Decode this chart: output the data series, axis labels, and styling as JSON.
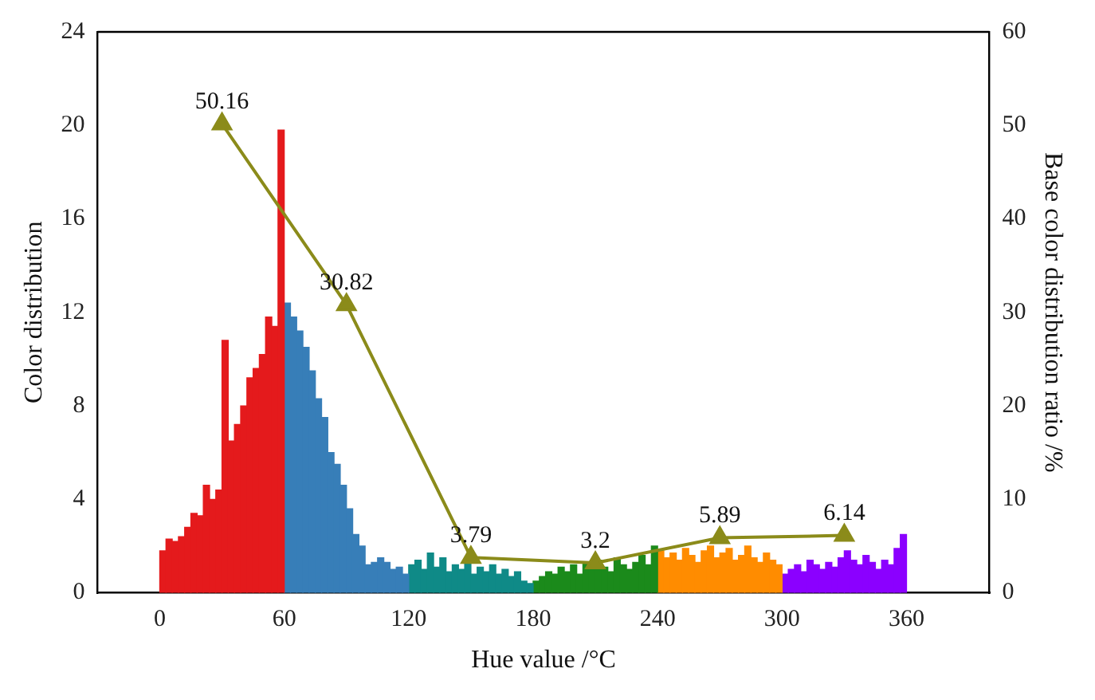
{
  "chart_data": {
    "type": "histogram",
    "xlabel": "Hue value /°C",
    "ylabel": "Color distribution",
    "y2label": "Base color distribution ratio /%",
    "xlim": [
      -30,
      400
    ],
    "xticks": [
      0,
      60,
      120,
      180,
      240,
      300,
      360
    ],
    "ylim": [
      0,
      24
    ],
    "yticks": [
      0,
      4,
      8,
      12,
      16,
      20,
      24
    ],
    "y2lim": [
      0,
      60
    ],
    "y2ticks": [
      0,
      10,
      20,
      30,
      40,
      50,
      60
    ],
    "grid": false,
    "legend": false,
    "series": [
      {
        "color": "#e41a1c",
        "bins": [
          0,
          3,
          6,
          9,
          12,
          15,
          18,
          21,
          24,
          27,
          30,
          33,
          36,
          39,
          42,
          45,
          48,
          51,
          54,
          57,
          60
        ],
        "values": [
          1.8,
          2.3,
          2.2,
          2.4,
          2.8,
          3.4,
          3.3,
          4.6,
          4.0,
          4.4,
          10.8,
          6.5,
          7.2,
          8.0,
          9.2,
          9.6,
          10.2,
          11.8,
          11.4,
          19.8
        ]
      },
      {
        "color": "#377eb8",
        "bins": [
          60,
          63,
          66,
          69,
          72,
          75,
          78,
          81,
          84,
          87,
          90,
          93,
          96,
          99,
          102,
          105,
          108,
          111,
          114,
          117,
          120
        ],
        "values": [
          12.4,
          11.8,
          11.2,
          10.5,
          9.5,
          8.3,
          7.5,
          6.0,
          5.5,
          4.6,
          3.6,
          2.5,
          2.0,
          1.2,
          1.3,
          1.5,
          1.3,
          1.0,
          1.1,
          0.8
        ]
      },
      {
        "color": "#0f8a87",
        "bins": [
          120,
          123,
          126,
          129,
          132,
          135,
          138,
          141,
          144,
          147,
          150,
          153,
          156,
          159,
          162,
          165,
          168,
          171,
          174,
          177,
          180
        ],
        "values": [
          1.2,
          1.4,
          1.0,
          1.7,
          1.1,
          1.5,
          0.9,
          1.2,
          1.0,
          1.3,
          0.8,
          1.1,
          0.9,
          1.2,
          0.8,
          1.0,
          0.7,
          0.9,
          0.5,
          0.4
        ]
      },
      {
        "color": "#1b8a1b",
        "bins": [
          180,
          183,
          186,
          189,
          192,
          195,
          198,
          201,
          204,
          207,
          210,
          213,
          216,
          219,
          222,
          225,
          228,
          231,
          234,
          237,
          240
        ],
        "values": [
          0.5,
          0.7,
          0.9,
          0.8,
          1.1,
          0.9,
          1.2,
          0.8,
          1.3,
          1.0,
          1.4,
          1.1,
          0.9,
          1.5,
          1.2,
          1.0,
          1.3,
          1.6,
          1.2,
          2.0
        ]
      },
      {
        "color": "#ff8c00",
        "bins": [
          240,
          243,
          246,
          249,
          252,
          255,
          258,
          261,
          264,
          267,
          270,
          273,
          276,
          279,
          282,
          285,
          288,
          291,
          294,
          297,
          300
        ],
        "values": [
          1.8,
          1.5,
          1.7,
          1.4,
          1.9,
          1.6,
          1.3,
          1.8,
          2.0,
          1.5,
          1.7,
          1.9,
          1.4,
          1.6,
          2.0,
          1.5,
          1.3,
          1.7,
          1.4,
          1.2
        ]
      },
      {
        "color": "#8b00ff",
        "bins": [
          300,
          303,
          306,
          309,
          312,
          315,
          318,
          321,
          324,
          327,
          330,
          333,
          336,
          339,
          342,
          345,
          348,
          351,
          354,
          357,
          360
        ],
        "values": [
          0.8,
          1.0,
          1.2,
          0.9,
          1.4,
          1.2,
          1.0,
          1.3,
          1.1,
          1.5,
          1.8,
          1.4,
          1.2,
          1.6,
          1.3,
          1.0,
          1.4,
          1.2,
          1.9,
          2.5
        ]
      },
      {
        "type": "line",
        "axis": "y2",
        "color": "#8b8b1a",
        "marker": "triangle",
        "x": [
          30,
          90,
          150,
          210,
          270,
          330
        ],
        "values": [
          50.16,
          30.82,
          3.79,
          3.2,
          5.89,
          6.14
        ],
        "value_labels": [
          "50.16",
          "30.82",
          "3.79",
          "3.2",
          "5.89",
          "6.14"
        ]
      }
    ]
  }
}
